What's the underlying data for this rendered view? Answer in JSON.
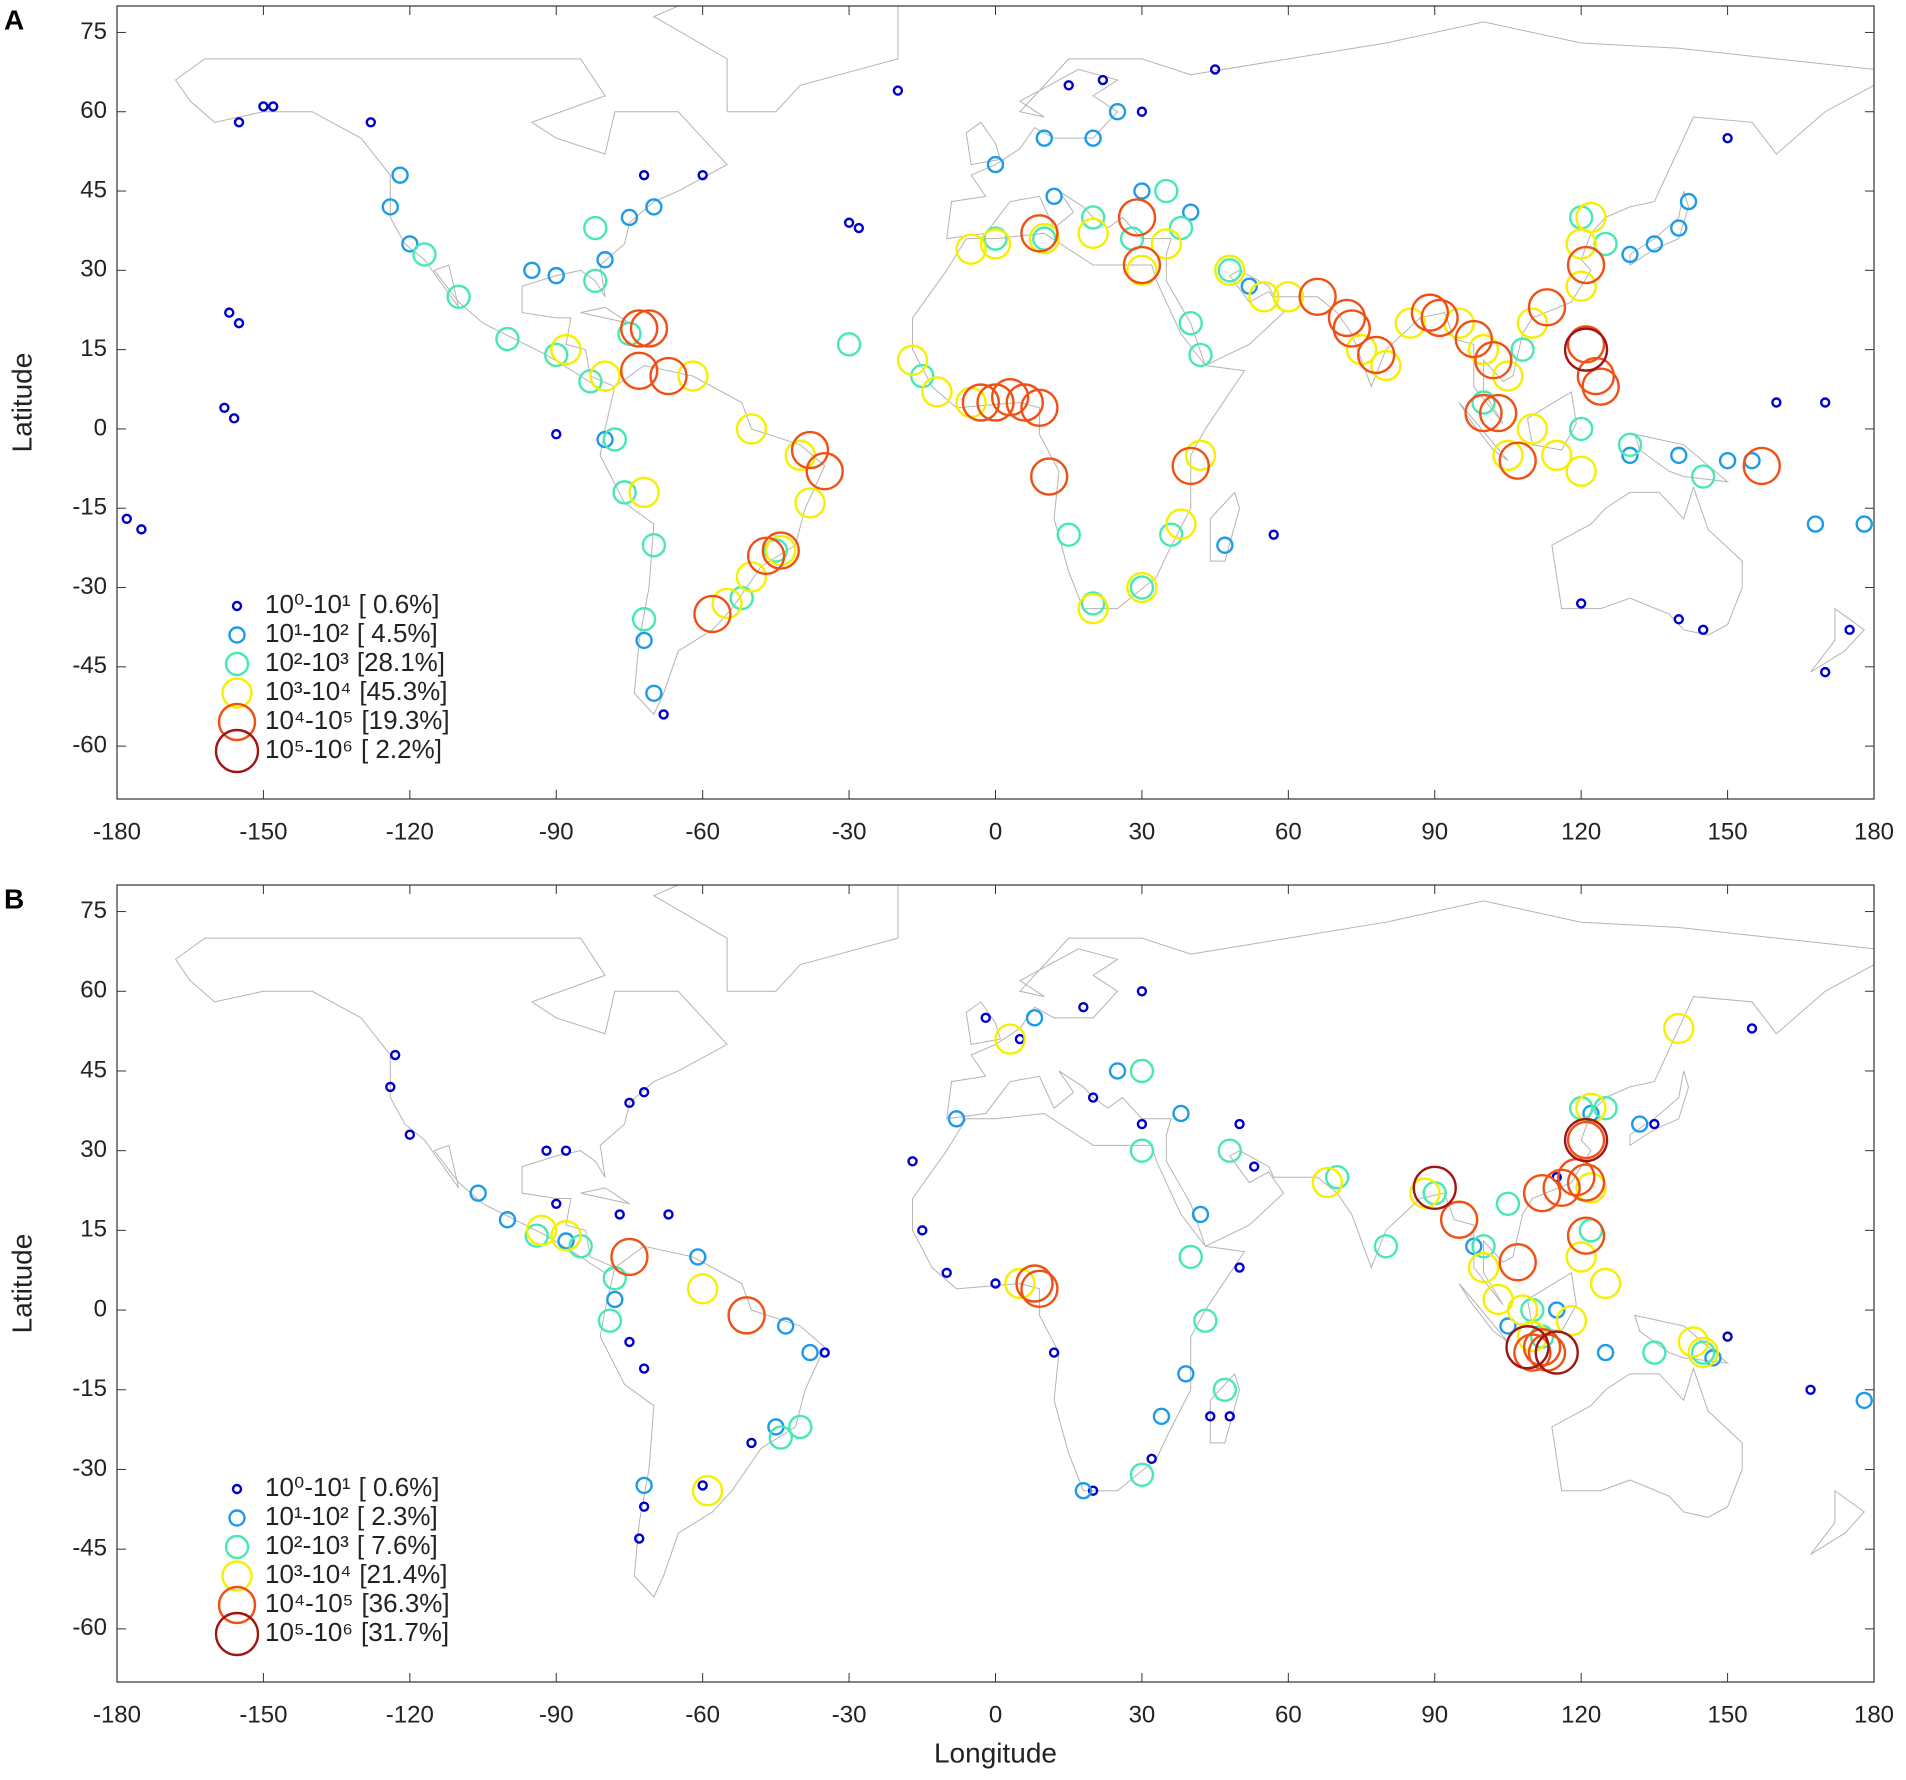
{
  "chart_data": [
    {
      "type": "scatter",
      "panel": "A",
      "ylabel": "Latitude",
      "xlim": [
        -180,
        180
      ],
      "ylim": [
        -70,
        80
      ],
      "xticks": [
        -180,
        -150,
        -120,
        -90,
        -60,
        -30,
        0,
        30,
        60,
        90,
        120,
        150,
        180
      ],
      "yticks": [
        -60,
        -45,
        -30,
        -15,
        0,
        15,
        30,
        45,
        60,
        75
      ],
      "legend": "lower left",
      "series": [
        {
          "name": "10⁰-10¹",
          "label": "[ 0.6%]",
          "color": "#0000cd",
          "x": [
            -150,
            -148,
            -155,
            -128,
            -178,
            -175,
            -157,
            -155,
            -158,
            -156,
            -90,
            -72,
            -60,
            -30,
            -28,
            15,
            22,
            -20,
            45,
            120,
            140,
            145,
            160,
            170,
            150,
            170,
            175,
            57,
            -68,
            30
          ],
          "y": [
            61,
            61,
            58,
            58,
            -17,
            -19,
            22,
            20,
            4,
            2,
            -1,
            48,
            48,
            39,
            38,
            65,
            66,
            64,
            68,
            -33,
            -36,
            -38,
            5,
            5,
            55,
            -46,
            -38,
            -20,
            -54,
            60
          ]
        },
        {
          "name": "10¹-10²",
          "label": "[ 4.5%]",
          "color": "#1e9be6",
          "x": [
            -122,
            -124,
            -120,
            -95,
            -90,
            -80,
            -75,
            -70,
            -72,
            -70,
            -80,
            10,
            0,
            20,
            25,
            12,
            30,
            40,
            52,
            130,
            135,
            140,
            142,
            130,
            140,
            150,
            155,
            47,
            178,
            168
          ],
          "y": [
            48,
            42,
            35,
            30,
            29,
            32,
            40,
            42,
            -40,
            -50,
            -2,
            55,
            50,
            55,
            60,
            44,
            45,
            41,
            27,
            33,
            35,
            38,
            43,
            -5,
            -5,
            -6,
            -6,
            -22,
            -18,
            -18
          ]
        },
        {
          "name": "10²-10³",
          "label": "[28.1%]",
          "color": "#48e8b4",
          "x": [
            -117,
            -110,
            -100,
            -90,
            -83,
            -78,
            -76,
            -70,
            -72,
            -75,
            -82,
            -82,
            0,
            10,
            20,
            28,
            35,
            38,
            48,
            40,
            42,
            -15,
            15,
            20,
            30,
            36,
            120,
            125,
            120,
            130,
            145,
            100,
            108,
            -45,
            -52,
            -30
          ],
          "y": [
            33,
            25,
            17,
            14,
            9,
            -2,
            -12,
            -22,
            -36,
            18,
            28,
            38,
            36,
            36,
            40,
            36,
            45,
            38,
            30,
            20,
            14,
            10,
            -20,
            -33,
            -30,
            -20,
            40,
            35,
            0,
            -3,
            -9,
            5,
            15,
            -23,
            -32,
            16
          ]
        },
        {
          "name": "10³-10⁴",
          "label": "[45.3%]",
          "color": "#f5f000",
          "x": [
            -88,
            -80,
            -62,
            -50,
            -40,
            -38,
            -44,
            -50,
            -55,
            -17,
            -12,
            -5,
            0,
            10,
            20,
            30,
            35,
            -5,
            20,
            30,
            38,
            48,
            60,
            75,
            80,
            85,
            95,
            105,
            110,
            120,
            122,
            120,
            110,
            105,
            115,
            120,
            55,
            42,
            -72,
            100
          ],
          "y": [
            15,
            10,
            10,
            0,
            -5,
            -14,
            -23,
            -28,
            -33,
            13,
            7,
            5,
            35,
            36,
            37,
            30,
            35,
            34,
            -34,
            -30,
            -18,
            30,
            25,
            15,
            12,
            20,
            20,
            10,
            20,
            35,
            40,
            27,
            0,
            -5,
            -5,
            -8,
            25,
            -5,
            -12,
            15
          ]
        },
        {
          "name": "10⁴-10⁵",
          "label": "[19.3%]",
          "color": "#f05014",
          "x": [
            -73,
            -71,
            -73,
            -67,
            -38,
            -35,
            -44,
            -47,
            -58,
            -3,
            0,
            3,
            6,
            9,
            11,
            9,
            29,
            30,
            40,
            66,
            72,
            73,
            78,
            89,
            91,
            98,
            102,
            100,
            107,
            113,
            121,
            121,
            123,
            124,
            157,
            103
          ],
          "y": [
            19,
            19,
            11,
            10,
            -4,
            -8,
            -23,
            -24,
            -35,
            5,
            5,
            6,
            5,
            4,
            -9,
            37,
            40,
            31,
            -7,
            25,
            21,
            19,
            14,
            22,
            21,
            17,
            13,
            3,
            -6,
            23,
            31,
            16,
            10,
            8,
            -7,
            3
          ]
        },
        {
          "name": "10⁵-10⁶",
          "label": "[ 2.2%]",
          "color": "#a01414",
          "x": [
            121
          ],
          "y": [
            15
          ]
        }
      ]
    },
    {
      "type": "scatter",
      "panel": "B",
      "xlabel": "Longitude",
      "ylabel": "Latitude",
      "xlim": [
        -180,
        180
      ],
      "ylim": [
        -70,
        80
      ],
      "xticks": [
        -180,
        -150,
        -120,
        -90,
        -60,
        -30,
        0,
        30,
        60,
        90,
        120,
        150,
        180
      ],
      "yticks": [
        -60,
        -45,
        -30,
        -15,
        0,
        15,
        30,
        45,
        60,
        75
      ],
      "legend": "lower left",
      "series": [
        {
          "name": "10⁰-10¹",
          "label": "[ 0.6%]",
          "color": "#0000cd",
          "x": [
            -123,
            -124,
            -120,
            -92,
            -88,
            -75,
            -72,
            -90,
            -77,
            -67,
            -75,
            -72,
            -72,
            -73,
            -60,
            -50,
            -35,
            -2,
            5,
            18,
            30,
            -15,
            -10,
            0,
            12,
            20,
            32,
            44,
            48,
            20,
            30,
            50,
            53,
            50,
            115,
            135,
            155,
            150,
            167,
            -17
          ],
          "y": [
            48,
            42,
            33,
            30,
            30,
            39,
            41,
            20,
            18,
            18,
            -6,
            -11,
            -37,
            -43,
            -33,
            -25,
            -8,
            55,
            51,
            57,
            60,
            15,
            7,
            5,
            -8,
            -34,
            -28,
            -20,
            -20,
            40,
            35,
            35,
            27,
            8,
            25,
            35,
            53,
            -5,
            -15,
            28
          ]
        },
        {
          "name": "10¹-10²",
          "label": "[ 2.3%]",
          "color": "#1e9be6",
          "x": [
            -106,
            -100,
            -88,
            -78,
            -61,
            -43,
            -38,
            -45,
            -72,
            18,
            34,
            39,
            42,
            25,
            38,
            -8,
            8,
            98,
            122,
            132,
            147,
            178,
            115,
            105,
            125
          ],
          "y": [
            22,
            17,
            13,
            2,
            10,
            -3,
            -8,
            -22,
            -33,
            -34,
            -20,
            -12,
            18,
            45,
            37,
            36,
            55,
            12,
            37,
            35,
            -9,
            -17,
            0,
            -3,
            -8
          ]
        },
        {
          "name": "10²-10³",
          "label": "[ 7.6%]",
          "color": "#48e8b4",
          "x": [
            -94,
            -85,
            -79,
            -78,
            -40,
            -44,
            30,
            40,
            43,
            47,
            30,
            30,
            48,
            70,
            80,
            90,
            100,
            105,
            120,
            125,
            122,
            110,
            112,
            135,
            145
          ],
          "y": [
            14,
            12,
            -2,
            6,
            -22,
            -24,
            30,
            10,
            -2,
            -15,
            -31,
            45,
            30,
            25,
            12,
            22,
            12,
            20,
            38,
            38,
            15,
            0,
            -5,
            -8,
            -8
          ]
        },
        {
          "name": "10³-10⁴",
          "label": "[21.4%]",
          "color": "#f5f000",
          "x": [
            -93,
            -88,
            -60,
            -59,
            3,
            5,
            68,
            88,
            100,
            103,
            108,
            110,
            118,
            122,
            122,
            143,
            145,
            140,
            120,
            125
          ],
          "y": [
            15,
            14,
            4,
            -34,
            51,
            5,
            24,
            22,
            8,
            2,
            0,
            -5,
            -2,
            23,
            38,
            -6,
            -8,
            53,
            10,
            5
          ]
        },
        {
          "name": "10⁴-10⁵",
          "label": "[36.3%]",
          "color": "#f05014",
          "x": [
            -75,
            -51,
            8,
            9,
            95,
            107,
            112,
            113,
            112,
            116,
            119,
            121,
            121,
            121,
            110
          ],
          "y": [
            10,
            -1,
            5,
            4,
            17,
            9,
            -7,
            -8,
            22,
            23,
            25,
            32,
            24,
            14,
            -8
          ]
        },
        {
          "name": "10⁵-10⁶",
          "label": "[31.7%]",
          "color": "#a01414",
          "x": [
            90,
            109,
            121,
            115
          ],
          "y": [
            23,
            -7,
            32,
            -8
          ]
        }
      ]
    }
  ]
}
